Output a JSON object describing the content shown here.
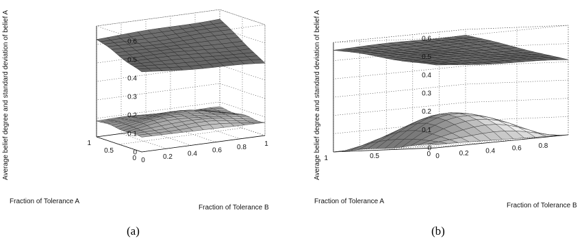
{
  "chart_data": [
    {
      "type": "surface",
      "caption": "(a)",
      "xlabel": "Fraction of Tolerance A",
      "ylabel": "Fraction of Tolerance B",
      "zlabel": "Average belief degree and standard deviation of belief A",
      "xlim": [
        0,
        1
      ],
      "ylim": [
        0,
        1
      ],
      "zlim": [
        0,
        0.6
      ],
      "xticks": [
        "0",
        "0.5",
        "1"
      ],
      "yticks": [
        "0",
        "0.2",
        "0.4",
        "0.6",
        "0.8",
        "1"
      ],
      "zticks": [
        "0",
        "0.1",
        "0.2",
        "0.3",
        "0.4",
        "0.5",
        "0.6"
      ],
      "grid": "on",
      "series": [
        {
          "corner_values": {
            "a0_b0": 0.43,
            "a1_b0": 0.53,
            "a0_b1": 0.39,
            "a1_b1": 0.55
          }
        },
        {
          "corner_values": {
            "a0_b0": 0.08,
            "a1_b0": 0.09,
            "a0_b1": 0.07,
            "a1_b1": 0.07
          },
          "peak": 0.12
        }
      ]
    },
    {
      "type": "surface",
      "caption": "(b)",
      "xlabel": "Fraction of Tolerance A",
      "ylabel": "Fraction of Tolerance B",
      "zlabel": "Average belief degree and standard deviation of belief A",
      "xlim": [
        0,
        1
      ],
      "ylim": [
        0,
        1
      ],
      "zlim": [
        0,
        0.6
      ],
      "xticks": [
        "0",
        "0.5",
        "1"
      ],
      "yticks": [
        "0",
        "0.2",
        "0.4",
        "0.6",
        "0.8"
      ],
      "zticks": [
        "0",
        "0.1",
        "0.2",
        "0.3",
        "0.4",
        "0.5",
        "0.6"
      ],
      "grid": "on",
      "series": [
        {
          "corner_values": {
            "a0_b0": 0.45,
            "a1_b0": 0.56,
            "a0_b1": 0.41,
            "a1_b1": 0.57
          }
        },
        {
          "corner_values": {
            "a0_b0": 0.02,
            "a1_b0": 0.0,
            "a0_b1": 0.0,
            "a1_b1": 0.0
          },
          "peak": 0.17
        }
      ]
    }
  ]
}
